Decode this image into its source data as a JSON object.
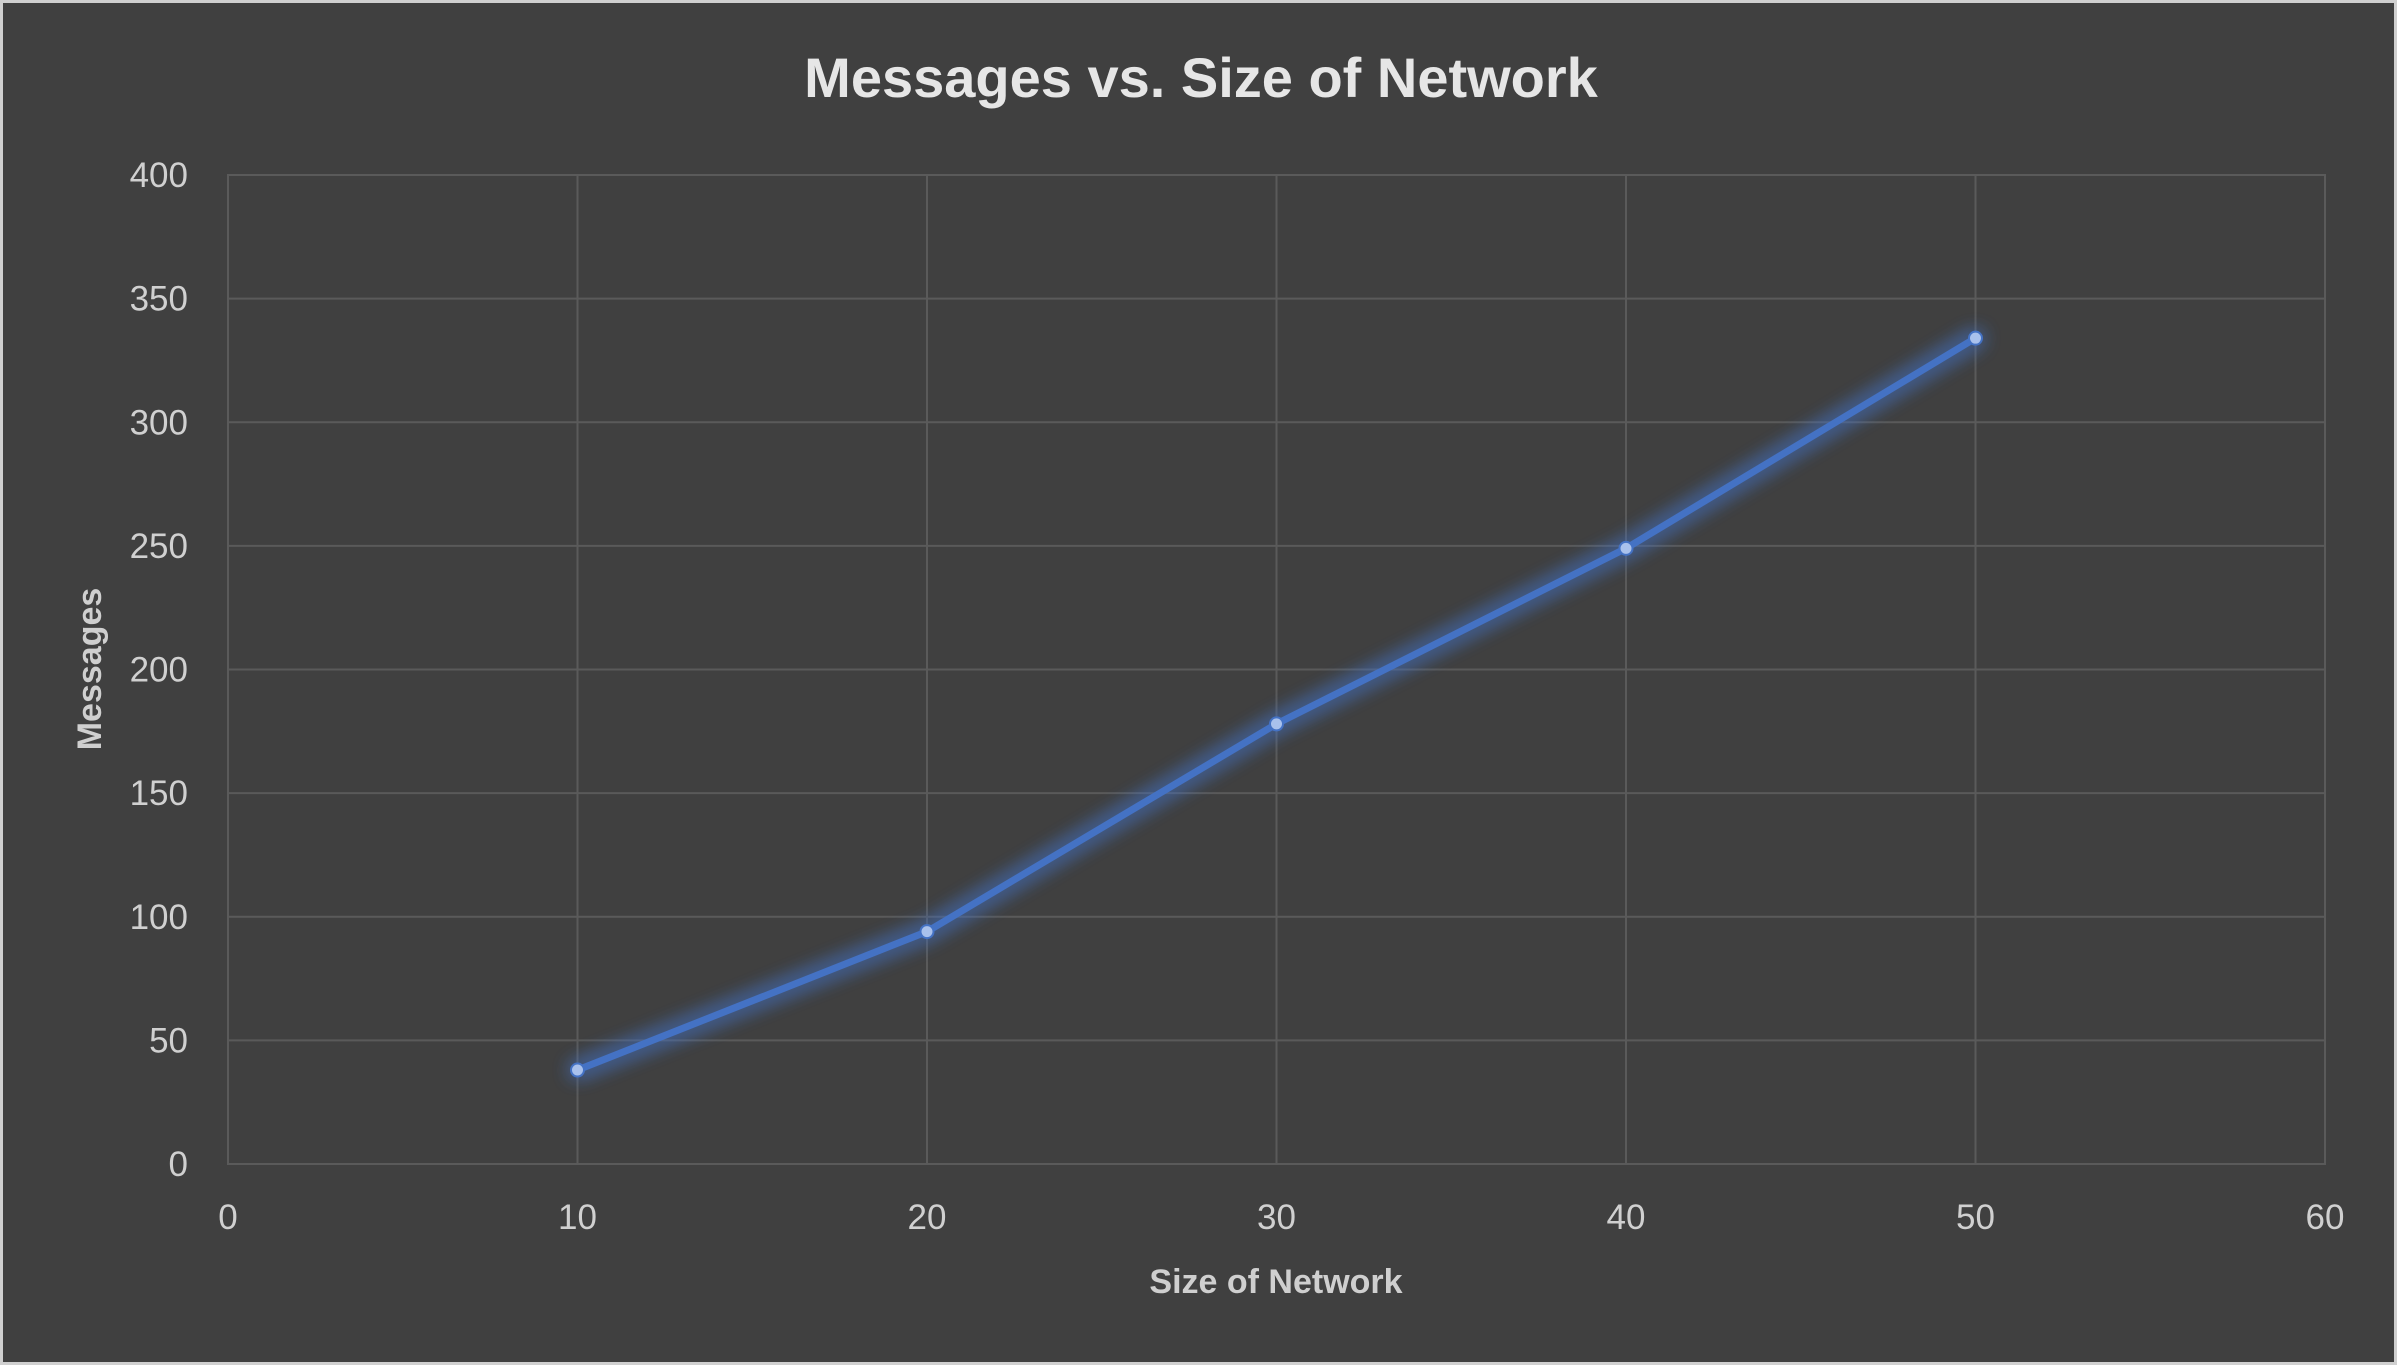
{
  "chart_data": {
    "type": "line",
    "title": "Messages vs. Size of Network",
    "xlabel": "Size of Network",
    "ylabel": "Messages",
    "xlim": [
      0,
      60
    ],
    "ylim": [
      0,
      400
    ],
    "x_ticks": [
      "0",
      "10",
      "20",
      "30",
      "40",
      "50",
      "60"
    ],
    "y_ticks": [
      "0",
      "50",
      "100",
      "150",
      "200",
      "250",
      "300",
      "350",
      "400"
    ],
    "x_tick_values": [
      0,
      10,
      20,
      30,
      40,
      50,
      60
    ],
    "y_tick_values": [
      0,
      50,
      100,
      150,
      200,
      250,
      300,
      350,
      400
    ],
    "grid": true,
    "legend": "none",
    "series": [
      {
        "x": [
          10,
          20,
          30,
          40,
          50
        ],
        "values": [
          38,
          94,
          178,
          249,
          334
        ],
        "color": "#4472c4"
      }
    ],
    "background_color": "#404040",
    "text_color": "#d9d9d9",
    "grid_color": "#5a5a5a"
  }
}
